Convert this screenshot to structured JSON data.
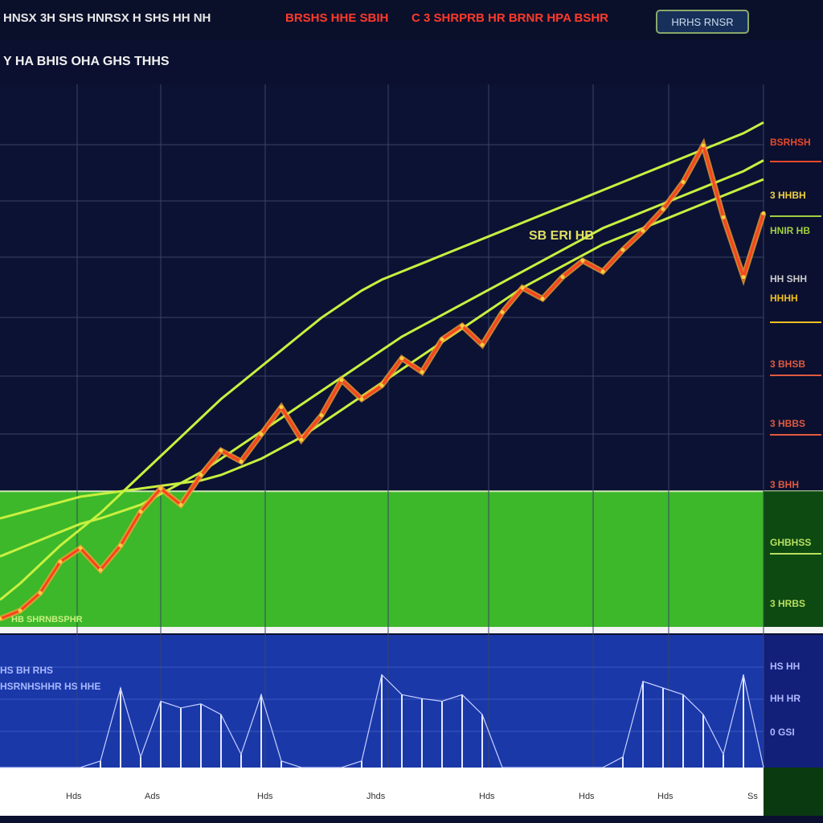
{
  "header": {
    "ticker_left": "HNSX 3H SHS HNRSX H SHS HH NH",
    "ticker_mid": "BRSHS HHE SBIH",
    "ticker_right": "C 3 SHRPRB HR  BRNR HPA BSHR",
    "button_label": "HRHS RNSR"
  },
  "title": "Y HA BHIS OHA GHS THHS",
  "annotations": {
    "peak_label": "SB ERI HB",
    "band_label": "HB SHRNBSPHR",
    "lower_label_1": "HS BH RHS",
    "lower_label_2": "HSRNHSHHR HS HHE"
  },
  "right_scale": {
    "labels": [
      "BSRHSH",
      "3 HHBH",
      "HNIR HB",
      "HH SHH",
      "HHHH",
      "3 BHSB",
      "3 HBBS",
      "3 BHH",
      "GHBHSS",
      "3 HRBS"
    ],
    "colors": [
      "#e84a2a",
      "#f0d040",
      "#a0d040",
      "#cccccc",
      "#f0c020",
      "#e05a40",
      "#e05a40",
      "#e05a40",
      "#b8e060",
      "#b8e060"
    ]
  },
  "lower_scale": {
    "labels": [
      "HS HH",
      "HH HR",
      "0 GSI"
    ]
  },
  "x_axis": {
    "labels": [
      "Hds",
      "Ads",
      "Hds",
      "Jhds",
      "Hds",
      "Hds",
      "Hds",
      "Ss"
    ]
  },
  "colors": {
    "background": "#0b1030",
    "price_hot": "#ff4020",
    "price_warm": "#f0a030",
    "moving_average": "#c8f040",
    "zone": "#3cb82a",
    "volume_panel": "#1a38a8",
    "grid": "#3a4466"
  },
  "chart_data": [
    {
      "type": "line",
      "title": "Y HA BHIS OHA GHS THHS",
      "x": [
        0,
        1,
        2,
        3,
        4,
        5,
        6,
        7,
        8,
        9,
        10,
        11,
        12,
        13,
        14,
        15,
        16,
        17,
        18,
        19,
        20,
        21,
        22,
        23,
        24,
        25,
        26,
        27,
        28,
        29,
        30,
        31,
        32,
        33,
        34,
        35,
        36,
        37,
        38
      ],
      "series": [
        {
          "values": [
            6,
            12,
            25,
            48,
            58,
            42,
            60,
            85,
            102,
            90,
            112,
            130,
            122,
            142,
            162,
            138,
            156,
            182,
            168,
            178,
            198,
            188,
            212,
            222,
            208,
            232,
            250,
            242,
            258,
            270,
            262,
            278,
            292,
            308,
            328,
            355,
            302,
            258,
            305
          ]
        },
        {
          "values": [
            20,
            32,
            46,
            60,
            72,
            84,
            98,
            112,
            126,
            140,
            154,
            168,
            180,
            192,
            204,
            216,
            228,
            238,
            248,
            256,
            262,
            268,
            274,
            280,
            286,
            292,
            298,
            304,
            310,
            316,
            322,
            328,
            334,
            340,
            346,
            352,
            358,
            364,
            372
          ]
        },
        {
          "values": [
            52,
            58,
            64,
            70,
            76,
            80,
            85,
            90,
            98,
            106,
            114,
            124,
            134,
            144,
            154,
            164,
            174,
            184,
            194,
            204,
            214,
            222,
            230,
            238,
            246,
            254,
            262,
            270,
            278,
            286,
            294,
            300,
            306,
            312,
            318,
            324,
            330,
            336,
            344
          ]
        },
        {
          "values": [
            80,
            84,
            88,
            92,
            96,
            98,
            100,
            102,
            104,
            106,
            108,
            112,
            118,
            124,
            132,
            140,
            150,
            160,
            170,
            180,
            190,
            200,
            210,
            220,
            230,
            240,
            250,
            258,
            266,
            274,
            282,
            288,
            294,
            300,
            306,
            312,
            318,
            324,
            330
          ]
        }
      ],
      "ylim": [
        0,
        400
      ],
      "zone": [
        0,
        100
      ]
    },
    {
      "type": "line",
      "x": [
        0,
        1,
        2,
        3,
        4,
        5,
        6,
        7,
        8,
        9,
        10,
        11,
        12,
        13,
        14,
        15,
        16,
        17,
        18,
        19,
        20,
        21,
        22,
        23,
        24,
        25,
        26,
        27,
        28,
        29,
        30,
        31,
        32,
        33,
        34,
        35,
        36,
        37,
        38
      ],
      "series": [
        {
          "values": [
            0,
            0,
            0,
            0,
            0,
            5,
            60,
            8,
            50,
            45,
            48,
            40,
            10,
            55,
            5,
            0,
            0,
            0,
            5,
            70,
            55,
            52,
            50,
            55,
            40,
            0,
            0,
            0,
            0,
            0,
            0,
            8,
            65,
            60,
            55,
            40,
            10,
            70,
            0
          ]
        }
      ],
      "ylim": [
        0,
        100
      ]
    }
  ]
}
